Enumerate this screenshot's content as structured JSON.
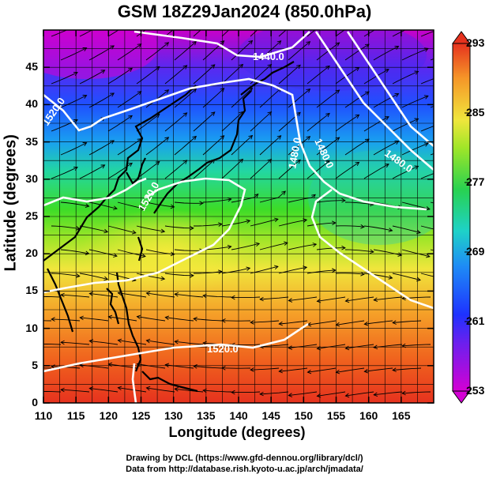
{
  "title": "GSM 18Z29Jan2024 (850.0hPa)",
  "x_axis": {
    "label": "Longitude (degrees)",
    "ticks": [
      "110",
      "115",
      "120",
      "125",
      "130",
      "135",
      "140",
      "145",
      "150",
      "155",
      "160",
      "165"
    ],
    "range": [
      110,
      170
    ]
  },
  "y_axis": {
    "label": "Latitude  (degrees)",
    "ticks": [
      "0",
      "5",
      "10",
      "15",
      "20",
      "25",
      "30",
      "35",
      "40",
      "45"
    ],
    "range": [
      0,
      50
    ]
  },
  "colorbar": {
    "ticks": [
      "293",
      "285",
      "277",
      "269",
      "261",
      "253"
    ],
    "range": [
      253,
      293
    ]
  },
  "contour_labels": [
    "1440.0",
    "1480.0",
    "1480.0",
    "1520.0",
    "1520.0",
    "1520.0",
    "1480.0"
  ],
  "credits": [
    "Drawing by DCL (https://www.gfd-dennou.org/library/dcl/)",
    "Data from http://database.rish.kyoto-u.ac.jp/arch/jmadata/"
  ],
  "colors": {
    "cold": "#cc00cc",
    "cool": "#1a3cff",
    "mid": "#33cc33",
    "warm": "#f5e33c",
    "hot": "#e8341c"
  }
}
